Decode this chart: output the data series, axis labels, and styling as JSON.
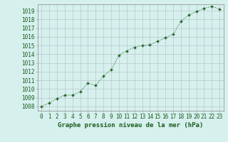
{
  "x": [
    0,
    1,
    2,
    3,
    4,
    5,
    6,
    7,
    8,
    9,
    10,
    11,
    12,
    13,
    14,
    15,
    16,
    17,
    18,
    19,
    20,
    21,
    22,
    23
  ],
  "y": [
    1008.0,
    1008.4,
    1008.9,
    1009.3,
    1009.3,
    1009.7,
    1010.7,
    1010.4,
    1011.5,
    1012.2,
    1013.9,
    1014.4,
    1014.8,
    1015.0,
    1015.1,
    1015.5,
    1015.9,
    1016.3,
    1017.8,
    1018.5,
    1018.9,
    1019.3,
    1019.5,
    1019.2
  ],
  "ylim": [
    1007.5,
    1019.75
  ],
  "xlim": [
    -0.5,
    23.5
  ],
  "yticks": [
    1008,
    1009,
    1010,
    1011,
    1012,
    1013,
    1014,
    1015,
    1016,
    1017,
    1018,
    1019
  ],
  "xticks": [
    0,
    1,
    2,
    3,
    4,
    5,
    6,
    7,
    8,
    9,
    10,
    11,
    12,
    13,
    14,
    15,
    16,
    17,
    18,
    19,
    20,
    21,
    22,
    23
  ],
  "xlabel": "Graphe pression niveau de la mer (hPa)",
  "line_color": "#1a5c1a",
  "marker_color": "#1a5c1a",
  "bg_color": "#d6f0ee",
  "grid_color": "#b8c8c8",
  "text_color": "#1a5c1a",
  "xlabel_color": "#1a5c1a",
  "tick_fontsize": 5.5,
  "xlabel_fontsize": 6.5
}
